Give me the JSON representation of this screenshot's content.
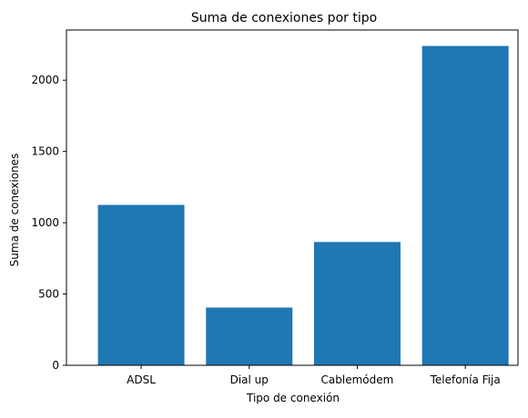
{
  "chart_data": {
    "type": "bar",
    "title": "Suma de conexiones por tipo",
    "xlabel": "Tipo de conexión",
    "ylabel": "Suma de conexiones",
    "categories": [
      "ADSL",
      "Dial up",
      "Cablemódem",
      "Telefonía Fija"
    ],
    "values": [
      1125,
      405,
      865,
      2240
    ],
    "ylim": [
      0,
      2352
    ],
    "yticks": [
      0,
      500,
      1000,
      1500,
      2000
    ],
    "grid": false,
    "bar_color": "#1f77b4"
  }
}
